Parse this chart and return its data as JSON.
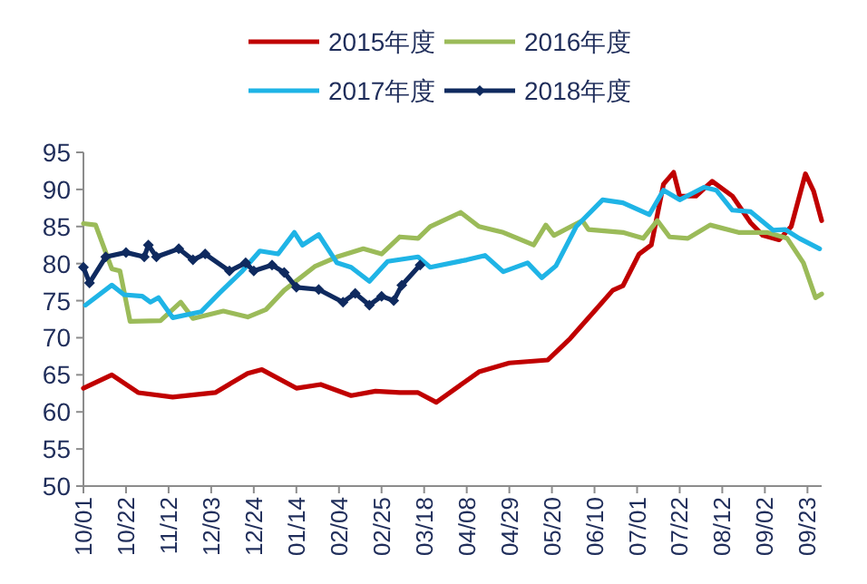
{
  "chart_data": {
    "type": "line",
    "legend": "top",
    "grid": false,
    "line_style": "solid",
    "xlim": [
      "2017-10-01",
      "2018-09-30"
    ],
    "ylim": [
      50,
      95
    ],
    "yticks": [
      50,
      55,
      60,
      65,
      70,
      75,
      80,
      85,
      90,
      95
    ],
    "xticks": [
      {
        "value": "2017-10-01",
        "label": "10/01"
      },
      {
        "value": "2017-10-22",
        "label": "10/22"
      },
      {
        "value": "2017-11-12",
        "label": "11/12"
      },
      {
        "value": "2017-12-03",
        "label": "12/03"
      },
      {
        "value": "2017-12-24",
        "label": "12/24"
      },
      {
        "value": "2018-01-14",
        "label": "01/14"
      },
      {
        "value": "2018-02-04",
        "label": "02/04"
      },
      {
        "value": "2018-02-25",
        "label": "02/25"
      },
      {
        "value": "2018-03-18",
        "label": "03/18"
      },
      {
        "value": "2018-04-08",
        "label": "04/08"
      },
      {
        "value": "2018-04-29",
        "label": "04/29"
      },
      {
        "value": "2018-05-20",
        "label": "05/20"
      },
      {
        "value": "2018-06-10",
        "label": "06/10"
      },
      {
        "value": "2018-07-01",
        "label": "07/01"
      },
      {
        "value": "2018-07-22",
        "label": "07/22"
      },
      {
        "value": "2018-08-12",
        "label": "08/12"
      },
      {
        "value": "2018-09-02",
        "label": "09/02"
      },
      {
        "value": "2018-09-23",
        "label": "09/23"
      }
    ],
    "series": [
      {
        "name": "2015年度",
        "color": "#c00000",
        "marker": "none",
        "x": [
          "2017-10-01",
          "2017-10-15",
          "2017-10-28",
          "2017-11-14",
          "2017-12-05",
          "2017-12-21",
          "2017-12-28",
          "2018-01-14",
          "2018-01-26",
          "2018-02-10",
          "2018-02-22",
          "2018-03-06",
          "2018-03-15",
          "2018-03-24",
          "2018-04-14",
          "2018-04-29",
          "2018-05-18",
          "2018-05-29",
          "2018-06-10",
          "2018-06-19",
          "2018-06-24",
          "2018-07-02",
          "2018-07-08",
          "2018-07-14",
          "2018-07-19",
          "2018-07-22",
          "2018-07-30",
          "2018-08-07",
          "2018-08-17",
          "2018-08-26",
          "2018-09-01",
          "2018-09-09",
          "2018-09-15",
          "2018-09-22",
          "2018-09-26",
          "2018-09-30"
        ],
        "values": [
          63.2,
          65.0,
          62.6,
          62.0,
          62.6,
          65.2,
          65.7,
          63.2,
          63.7,
          62.2,
          62.8,
          62.6,
          62.6,
          61.3,
          65.4,
          66.6,
          67.0,
          69.9,
          73.6,
          76.4,
          77.0,
          81.3,
          82.5,
          90.7,
          92.3,
          89.1,
          89.1,
          91.1,
          89.1,
          85.5,
          83.8,
          83.2,
          85.0,
          92.1,
          89.8,
          85.8
        ]
      },
      {
        "name": "2016年度",
        "color": "#9bbb59",
        "marker": "none",
        "x": [
          "2017-10-01",
          "2017-10-07",
          "2017-10-15",
          "2017-10-19",
          "2017-10-24",
          "2017-11-08",
          "2017-11-18",
          "2017-11-24",
          "2017-12-09",
          "2017-12-21",
          "2017-12-30",
          "2018-01-08",
          "2018-01-23",
          "2018-02-03",
          "2018-02-16",
          "2018-02-25",
          "2018-03-06",
          "2018-03-15",
          "2018-03-21",
          "2018-04-05",
          "2018-04-14",
          "2018-04-26",
          "2018-05-11",
          "2018-05-17",
          "2018-05-21",
          "2018-06-04",
          "2018-06-07",
          "2018-06-24",
          "2018-07-04",
          "2018-07-11",
          "2018-07-17",
          "2018-07-26",
          "2018-08-06",
          "2018-08-20",
          "2018-09-03",
          "2018-09-13",
          "2018-09-21",
          "2018-09-27",
          "2018-09-30"
        ],
        "values": [
          85.4,
          85.2,
          79.3,
          79.0,
          72.2,
          72.3,
          74.8,
          72.6,
          73.6,
          72.8,
          73.8,
          76.4,
          79.6,
          80.9,
          82.0,
          81.3,
          83.6,
          83.4,
          85.0,
          86.9,
          85.0,
          84.2,
          82.5,
          85.2,
          83.8,
          85.8,
          84.6,
          84.2,
          83.4,
          85.8,
          83.6,
          83.4,
          85.2,
          84.2,
          84.2,
          83.4,
          80.1,
          75.4,
          75.9
        ]
      },
      {
        "name": "2017年度",
        "color": "#1fb4e6",
        "marker": "none",
        "x": [
          "2017-10-02",
          "2017-10-15",
          "2017-10-21",
          "2017-10-30",
          "2017-11-03",
          "2017-11-07",
          "2017-11-14",
          "2017-11-28",
          "2017-12-07",
          "2017-12-18",
          "2017-12-27",
          "2018-01-05",
          "2018-01-13",
          "2018-01-17",
          "2018-01-25",
          "2018-02-03",
          "2018-02-10",
          "2018-02-19",
          "2018-02-28",
          "2018-03-15",
          "2018-03-21",
          "2018-04-08",
          "2018-04-17",
          "2018-04-26",
          "2018-05-08",
          "2018-05-15",
          "2018-05-22",
          "2018-06-01",
          "2018-06-14",
          "2018-06-24",
          "2018-07-07",
          "2018-07-14",
          "2018-07-22",
          "2018-08-03",
          "2018-08-09",
          "2018-08-17",
          "2018-08-26",
          "2018-09-06",
          "2018-09-12",
          "2018-09-19",
          "2018-09-29"
        ],
        "values": [
          74.4,
          77.1,
          75.8,
          75.6,
          74.8,
          75.4,
          72.7,
          73.5,
          76.0,
          78.9,
          81.7,
          81.3,
          84.2,
          82.5,
          83.9,
          80.1,
          79.5,
          77.6,
          80.3,
          80.9,
          79.5,
          80.5,
          81.1,
          78.9,
          80.1,
          78.1,
          79.7,
          85.0,
          88.6,
          88.2,
          86.6,
          89.9,
          88.6,
          90.3,
          89.9,
          87.2,
          87.0,
          84.5,
          84.6,
          83.4,
          82.0
        ]
      },
      {
        "name": "2018年度",
        "color": "#0f2a5f",
        "marker": "diamond",
        "x": [
          "2017-10-01",
          "2017-10-04",
          "2017-10-12",
          "2017-10-22",
          "2017-10-31",
          "2017-11-02",
          "2017-11-06",
          "2017-11-17",
          "2017-11-24",
          "2017-11-30",
          "2017-12-12",
          "2017-12-20",
          "2017-12-24",
          "2018-01-02",
          "2018-01-08",
          "2018-01-14",
          "2018-01-25",
          "2018-02-06",
          "2018-02-12",
          "2018-02-19",
          "2018-02-25",
          "2018-03-03",
          "2018-03-07",
          "2018-03-16"
        ],
        "values": [
          79.5,
          77.4,
          80.9,
          81.5,
          80.9,
          82.5,
          80.9,
          82.0,
          80.5,
          81.3,
          79.0,
          80.1,
          79.0,
          79.8,
          78.8,
          76.8,
          76.5,
          74.8,
          76.0,
          74.4,
          75.6,
          75.0,
          77.1,
          79.8
        ]
      }
    ]
  }
}
